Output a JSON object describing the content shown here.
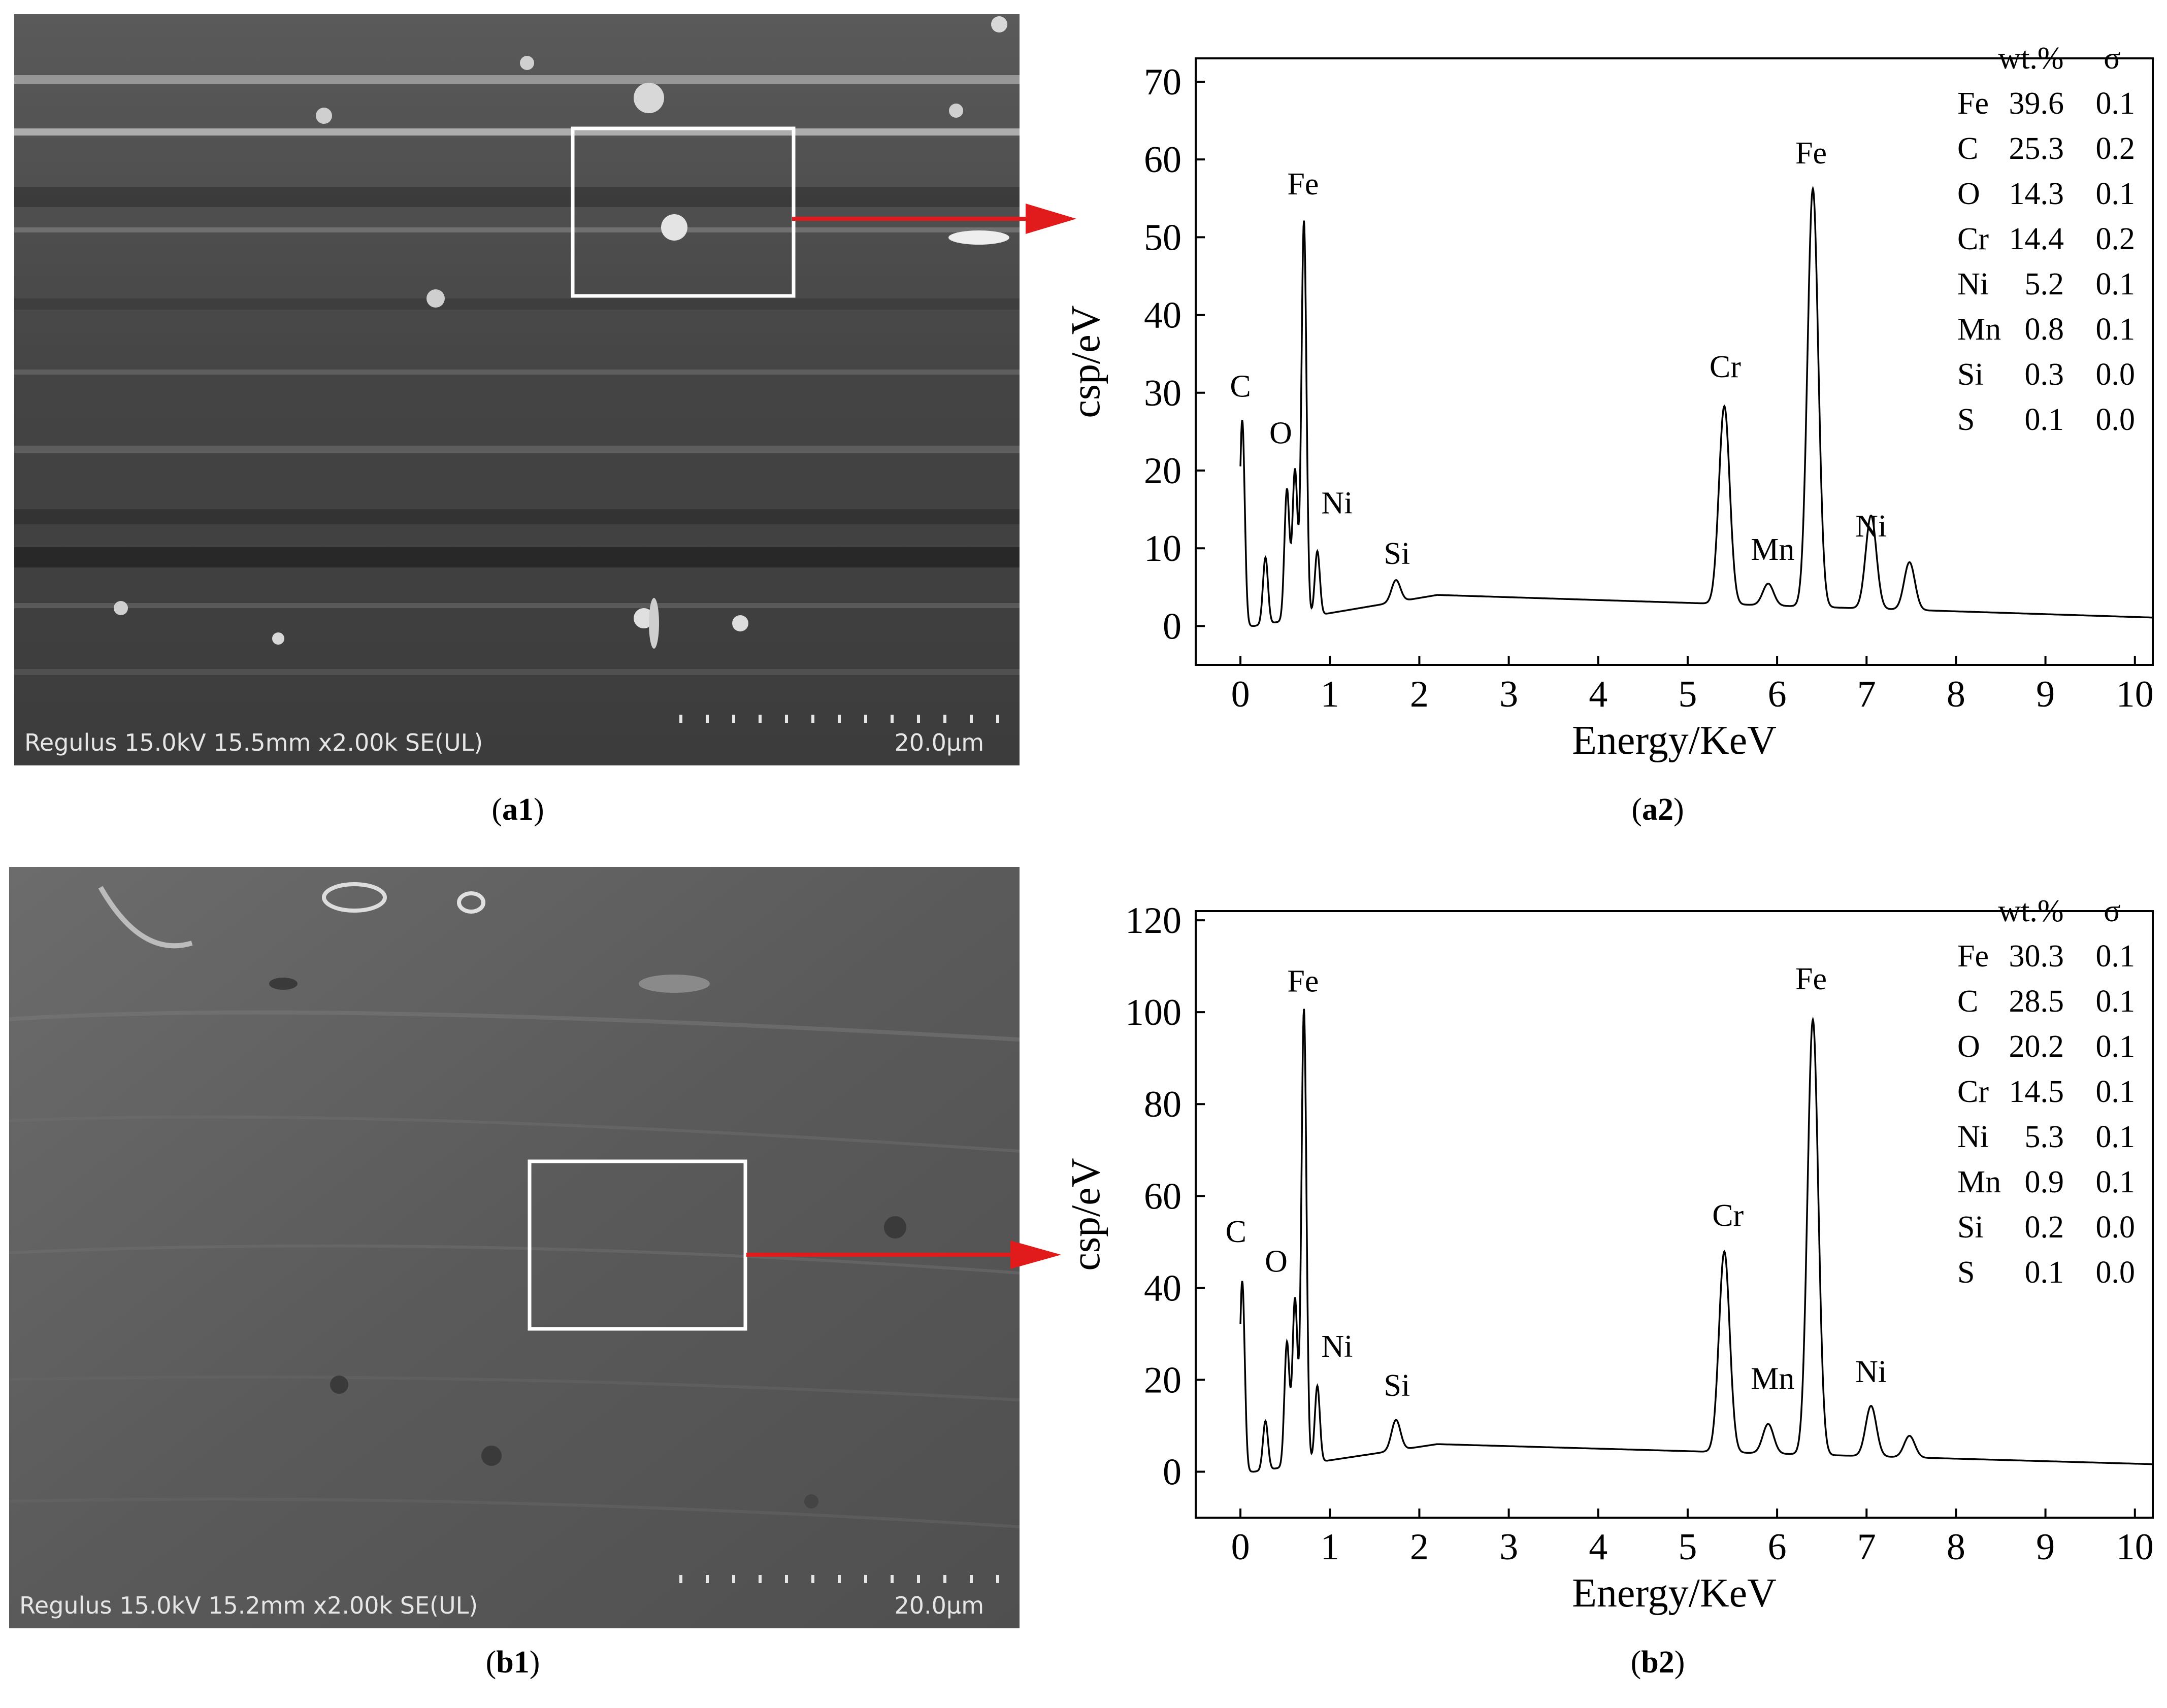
{
  "panels": {
    "a1": {
      "caption_letter": "a1",
      "sem_info": "Regulus 15.0kV 15.5mm x2.00k SE(UL)",
      "scale_label": "20.0µm"
    },
    "b1": {
      "caption_letter": "b1",
      "sem_info": "Regulus 15.0kV 15.2mm x2.00k SE(UL)",
      "scale_label": "20.0µm"
    },
    "a2": {
      "caption_letter": "a2"
    },
    "b2": {
      "caption_letter": "b2"
    }
  },
  "colors": {
    "arrow": "#e11b1b",
    "box": "#ffffff",
    "line": "#000000"
  },
  "chart_data": [
    {
      "type": "line",
      "panel": "a2",
      "xlabel": "Energy/KeV",
      "ylabel": "csp/eV",
      "xlim": [
        -0.5,
        10.2
      ],
      "ylim": [
        -5,
        73
      ],
      "xticks": [
        0,
        1,
        2,
        3,
        4,
        5,
        6,
        7,
        8,
        9,
        10
      ],
      "yticks": [
        0,
        10,
        20,
        30,
        40,
        50,
        60,
        70
      ],
      "peaks": [
        {
          "label": "C",
          "x": 0.02,
          "y": 26.5
        },
        {
          "label": "",
          "x": 0.28,
          "y": 8.8
        },
        {
          "label": "",
          "x": 0.52,
          "y": 17.5
        },
        {
          "label": "O",
          "x": 0.61,
          "y": 20.0
        },
        {
          "label": "Fe",
          "x": 0.71,
          "y": 52.0
        },
        {
          "label": "Ni",
          "x": 0.86,
          "y": 9.5
        },
        {
          "label": "Si",
          "x": 1.74,
          "y": 5.6
        },
        {
          "label": "Cr",
          "x": 5.41,
          "y": 28.0
        },
        {
          "label": "Mn",
          "x": 5.9,
          "y": 5.2
        },
        {
          "label": "Fe",
          "x": 6.4,
          "y": 56.0
        },
        {
          "label": "Ni",
          "x": 7.48,
          "y": 8.0
        },
        {
          "label": "",
          "x": 7.05,
          "y": 8.0
        },
        {
          "label": "",
          "x": 7.05,
          "y": 8.0
        }
      ],
      "peak_labels": [
        {
          "text": "C",
          "x": 0.0,
          "y": 29.5
        },
        {
          "text": "O",
          "x": 0.45,
          "y": 23.5
        },
        {
          "text": "Fe",
          "x": 0.7,
          "y": 55.5
        },
        {
          "text": "Ni",
          "x": 1.08,
          "y": 14.5
        },
        {
          "text": "Si",
          "x": 1.75,
          "y": 8.0
        },
        {
          "text": "Cr",
          "x": 5.42,
          "y": 32.0
        },
        {
          "text": "Mn",
          "x": 5.95,
          "y": 8.5
        },
        {
          "text": "Fe",
          "x": 6.38,
          "y": 59.5
        },
        {
          "text": "Ni",
          "x": 7.05,
          "y": 11.5
        }
      ],
      "composition": {
        "headers": [
          "wt.%",
          "σ"
        ],
        "rows": [
          [
            "Fe",
            "39.6",
            "0.1"
          ],
          [
            "C",
            "25.3",
            "0.2"
          ],
          [
            "O",
            "14.3",
            "0.1"
          ],
          [
            "Cr",
            "14.4",
            "0.2"
          ],
          [
            "Ni",
            "5.2",
            "0.1"
          ],
          [
            "Mn",
            "0.8",
            "0.1"
          ],
          [
            "Si",
            "0.3",
            "0.0"
          ],
          [
            "S",
            "0.1",
            "0.0"
          ]
        ]
      }
    },
    {
      "type": "line",
      "panel": "b2",
      "xlabel": "Energy/KeV",
      "ylabel": "csp/eV",
      "xlim": [
        -0.5,
        10.2
      ],
      "ylim": [
        -10,
        122
      ],
      "xticks": [
        0,
        1,
        2,
        3,
        4,
        5,
        6,
        7,
        8,
        9,
        10
      ],
      "yticks": [
        0,
        20,
        40,
        60,
        80,
        100,
        120
      ],
      "peaks": [
        {
          "label": "C",
          "x": 0.02,
          "y": 41.5
        },
        {
          "label": "",
          "x": 0.28,
          "y": 11.0
        },
        {
          "label": "",
          "x": 0.52,
          "y": 28.0
        },
        {
          "label": "O",
          "x": 0.61,
          "y": 37.5
        },
        {
          "label": "Fe",
          "x": 0.71,
          "y": 100.5
        },
        {
          "label": "Ni",
          "x": 0.86,
          "y": 18.5
        },
        {
          "label": "Si",
          "x": 1.74,
          "y": 10.8
        },
        {
          "label": "Cr",
          "x": 5.41,
          "y": 47.5
        },
        {
          "label": "Mn",
          "x": 5.9,
          "y": 10.0
        },
        {
          "label": "Fe",
          "x": 6.4,
          "y": 98.0
        },
        {
          "label": "Ni",
          "x": 7.05,
          "y": 14.0
        },
        {
          "label": "",
          "x": 7.48,
          "y": 7.5
        }
      ],
      "peak_labels": [
        {
          "text": "C",
          "x": -0.05,
          "y": 50.0
        },
        {
          "text": "O",
          "x": 0.4,
          "y": 43.5
        },
        {
          "text": "Fe",
          "x": 0.7,
          "y": 104.5
        },
        {
          "text": "Ni",
          "x": 1.08,
          "y": 25.0
        },
        {
          "text": "Si",
          "x": 1.75,
          "y": 16.5
        },
        {
          "text": "Cr",
          "x": 5.45,
          "y": 53.5
        },
        {
          "text": "Mn",
          "x": 5.95,
          "y": 18.0
        },
        {
          "text": "Fe",
          "x": 6.38,
          "y": 105.0
        },
        {
          "text": "Ni",
          "x": 7.05,
          "y": 19.5
        }
      ],
      "composition": {
        "headers": [
          "wt.%",
          "σ"
        ],
        "rows": [
          [
            "Fe",
            "30.3",
            "0.1"
          ],
          [
            "C",
            "28.5",
            "0.1"
          ],
          [
            "O",
            "20.2",
            "0.1"
          ],
          [
            "Cr",
            "14.5",
            "0.1"
          ],
          [
            "Ni",
            "5.3",
            "0.1"
          ],
          [
            "Mn",
            "0.9",
            "0.1"
          ],
          [
            "Si",
            "0.2",
            "0.0"
          ],
          [
            "S",
            "0.1",
            "0.0"
          ]
        ]
      }
    }
  ]
}
